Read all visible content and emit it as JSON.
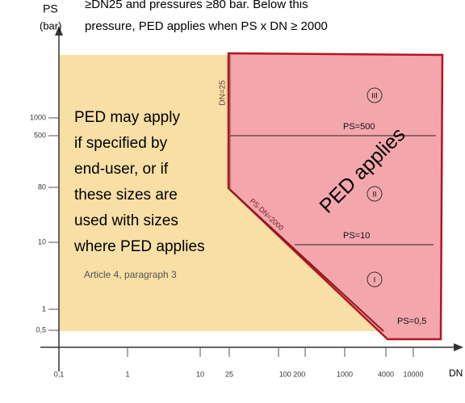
{
  "header": {
    "lines": [
      "≥DN25 and pressures ≥80 bar. Below this",
      "pressure, PED applies when PS x DN ≥ 2000"
    ]
  },
  "y_axis": {
    "label": "PS",
    "unit": "(bar)",
    "ticks": [
      "1000",
      "500",
      "80",
      "10",
      "1",
      "0,5"
    ]
  },
  "x_axis": {
    "label": "DN",
    "ticks": [
      "0,1",
      "1",
      "10",
      "25",
      "100 200",
      "1000",
      "4000",
      "10000"
    ]
  },
  "yellow_region": {
    "lines": [
      "PED may apply",
      "if specified by",
      "end-user, or if",
      "these sizes are",
      "used with sizes",
      "where PED applies"
    ],
    "reference": "Article 4, paragraph 3"
  },
  "red_region": {
    "label": "PED applies"
  },
  "boundaries": {
    "dn": "DN=25",
    "product": "PS·DN=2000",
    "ps_500": "PS=500",
    "ps_10": "PS=10",
    "ps_05": "PS=0,5"
  },
  "categories": [
    "III",
    "II",
    "I"
  ]
}
